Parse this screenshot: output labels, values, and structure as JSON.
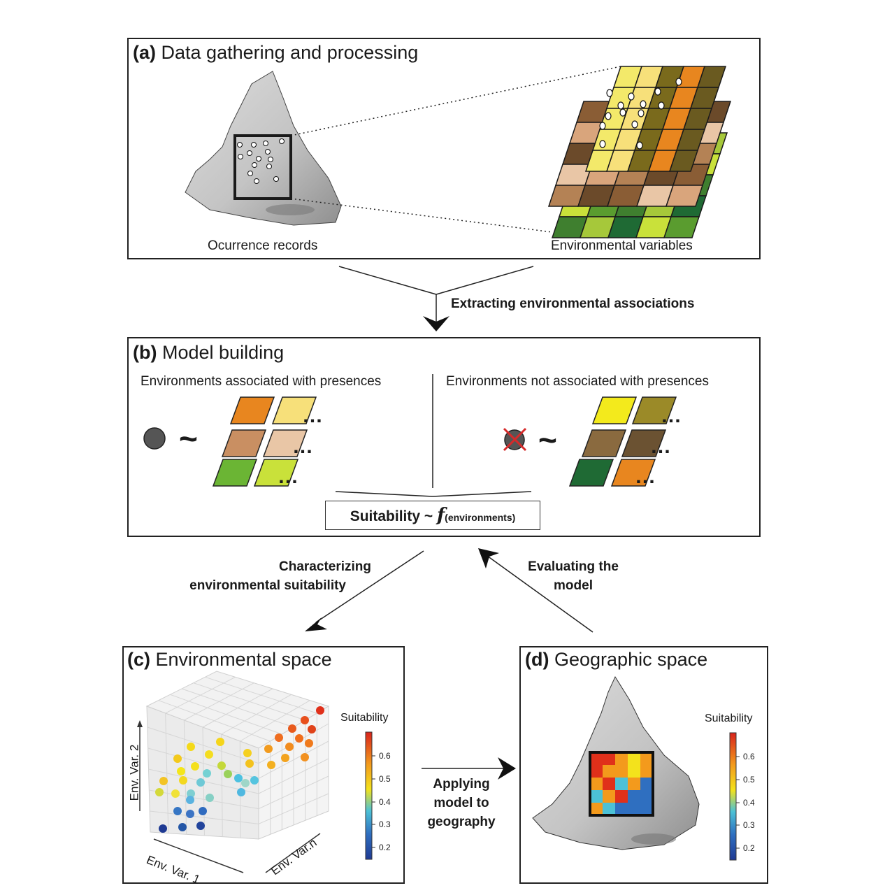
{
  "panel_a": {
    "letter": "(a)",
    "title": "Data gathering and processing",
    "left_caption": "Ocurrence records",
    "right_caption": "Environmental variables"
  },
  "steps": {
    "extract": "Extracting environmental associations",
    "characterize_1": "Characterizing",
    "characterize_2": "environmental suitability",
    "evaluate_1": "Evaluating the",
    "evaluate_2": "model",
    "apply_1": "Applying",
    "apply_2": "model to",
    "apply_3": "geography"
  },
  "panel_b": {
    "letter": "(b)",
    "title": "Model building",
    "left_heading": "Environments associated with presences",
    "right_heading": "Environments not associated with presences",
    "formula_main": "Suitability ~ ",
    "formula_f": "f",
    "formula_sub": "(environments)",
    "ellipsis": "…",
    "tilde": "~"
  },
  "panel_c": {
    "letter": "(c)",
    "title": "Environmental space",
    "axis_x": "Env. Var. 1",
    "axis_y": "Env. Var. 2",
    "axis_z": "Env. Var.n",
    "colorbar_title": "Suitability",
    "colorbar_ticks": [
      "0.6",
      "0.5",
      "0.4",
      "0.3",
      "0.2"
    ]
  },
  "panel_d": {
    "letter": "(d)",
    "title": "Geographic space",
    "colorbar_title": "Suitability",
    "colorbar_ticks": [
      "0.6",
      "0.5",
      "0.4",
      "0.3",
      "0.2"
    ]
  },
  "colors": {
    "layer_top": [
      "#f3e96a",
      "#e8861f",
      "#9b8a28",
      "#f7e07a",
      "#6a5a20",
      "#f1e34a",
      "#7a6a1c",
      "#2e3a1a"
    ],
    "layer_mid": [
      "#8a5d35",
      "#d9a57c",
      "#6b4a2a",
      "#e9c6a6",
      "#b48255"
    ],
    "layer_bot": [
      "#1f6a34",
      "#5a9c2f",
      "#a6c83a",
      "#c9e13a",
      "#3f7f2f"
    ],
    "suitability_scale": [
      "#1f3a93",
      "#2f6fc0",
      "#4cc1d6",
      "#f3e21c",
      "#f39a1c",
      "#e0301a"
    ],
    "presence_dot": "#555555",
    "cross": "#d62a2a"
  }
}
